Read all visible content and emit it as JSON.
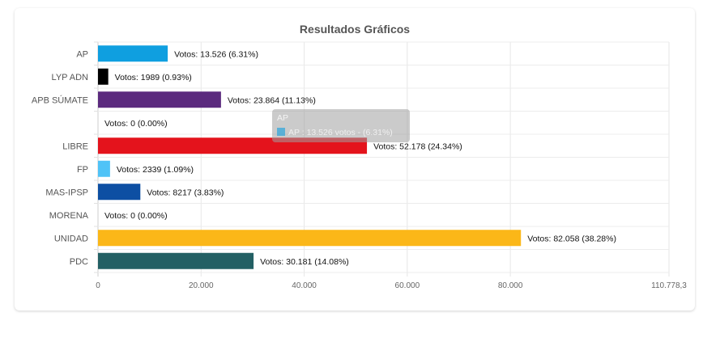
{
  "chart_data": {
    "type": "bar",
    "orientation": "horizontal",
    "title": "Resultados Gráficos",
    "categories": [
      "AP",
      "LYP ADN",
      "APB SÚMATE",
      "",
      "LIBRE",
      "FP",
      "MAS-IPSP",
      "MORENA",
      "UNIDAD",
      "PDC"
    ],
    "values": [
      13526,
      1989,
      23864,
      0,
      52178,
      2339,
      8217,
      0,
      82058,
      30181
    ],
    "value_labels": [
      "Votos: 13.526 (6.31%)",
      "Votos: 1989 (0.93%)",
      "Votos: 23.864 (11.13%)",
      "Votos: 0 (0.00%)",
      "Votos: 52.178 (24.34%)",
      "Votos: 2339 (1.09%)",
      "Votos: 8217 (3.83%)",
      "Votos: 0 (0.00%)",
      "Votos: 82.058 (38.28%)",
      "Votos: 30.181 (14.08%)"
    ],
    "colors": [
      "#0f9fe0",
      "#000000",
      "#5b2a7e",
      "#ffffff",
      "#e4131c",
      "#4fc3f7",
      "#0d4fa3",
      "#ffffff",
      "#fbb718",
      "#236064"
    ],
    "xlim": [
      0,
      110778.3
    ],
    "x_ticks": [
      0,
      20000,
      40000,
      60000,
      80000,
      110778.3
    ],
    "x_tick_labels": [
      "0",
      "20.000",
      "40.000",
      "60.000",
      "80.000",
      "110.778,3"
    ],
    "grid": true,
    "tooltip": {
      "title": "AP",
      "body": "AP : 13.526 votos - (6.31%)",
      "swatch_color": "#0f9fe0"
    }
  }
}
